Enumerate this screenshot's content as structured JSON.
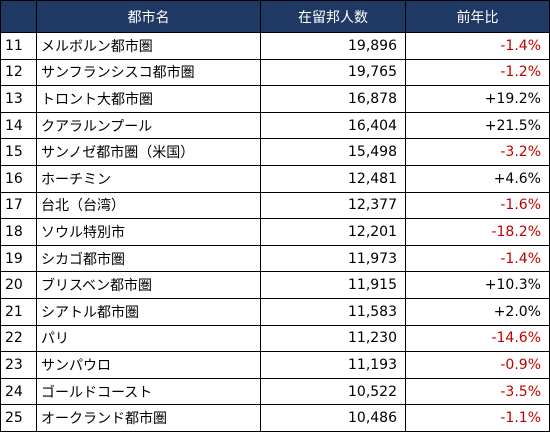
{
  "table": {
    "headers": [
      "",
      "都市名",
      "在留邦人数",
      "前年比"
    ],
    "rows": [
      {
        "rank": "11",
        "city": "メルボルン都市圏",
        "population": "19,896",
        "yoy": "-1.4%",
        "trend": "negative"
      },
      {
        "rank": "12",
        "city": "サンフランシスコ都市圏",
        "population": "19,765",
        "yoy": "-1.2%",
        "trend": "negative"
      },
      {
        "rank": "13",
        "city": "トロント大都市圏",
        "population": "16,878",
        "yoy": "+19.2%",
        "trend": "positive"
      },
      {
        "rank": "14",
        "city": "クアラルンプール",
        "population": "16,404",
        "yoy": "+21.5%",
        "trend": "positive"
      },
      {
        "rank": "15",
        "city": "サンノゼ都市圏（米国）",
        "population": "15,498",
        "yoy": "-3.2%",
        "trend": "negative"
      },
      {
        "rank": "16",
        "city": "ホーチミン",
        "population": "12,481",
        "yoy": "+4.6%",
        "trend": "positive"
      },
      {
        "rank": "17",
        "city": "台北（台湾）",
        "population": "12,377",
        "yoy": "-1.6%",
        "trend": "negative"
      },
      {
        "rank": "18",
        "city": "ソウル特別市",
        "population": "12,201",
        "yoy": "-18.2%",
        "trend": "negative"
      },
      {
        "rank": "19",
        "city": "シカゴ都市圏",
        "population": "11,973",
        "yoy": "-1.4%",
        "trend": "negative"
      },
      {
        "rank": "20",
        "city": "ブリスベン都市圏",
        "population": "11,915",
        "yoy": "+10.3%",
        "trend": "positive"
      },
      {
        "rank": "21",
        "city": "シアトル都市圏",
        "population": "11,583",
        "yoy": "+2.0%",
        "trend": "positive"
      },
      {
        "rank": "22",
        "city": "パリ",
        "population": "11,230",
        "yoy": "-14.6%",
        "trend": "negative"
      },
      {
        "rank": "23",
        "city": "サンパウロ",
        "population": "11,193",
        "yoy": "-0.9%",
        "trend": "negative"
      },
      {
        "rank": "24",
        "city": "ゴールドコースト",
        "population": "10,522",
        "yoy": "-3.5%",
        "trend": "negative"
      },
      {
        "rank": "25",
        "city": "オークランド都市圏",
        "population": "10,486",
        "yoy": "-1.1%",
        "trend": "negative"
      }
    ]
  },
  "colors": {
    "header_bg": "#1f3864",
    "header_text": "#ffffff",
    "negative": "#c00000",
    "positive": "#000000"
  }
}
